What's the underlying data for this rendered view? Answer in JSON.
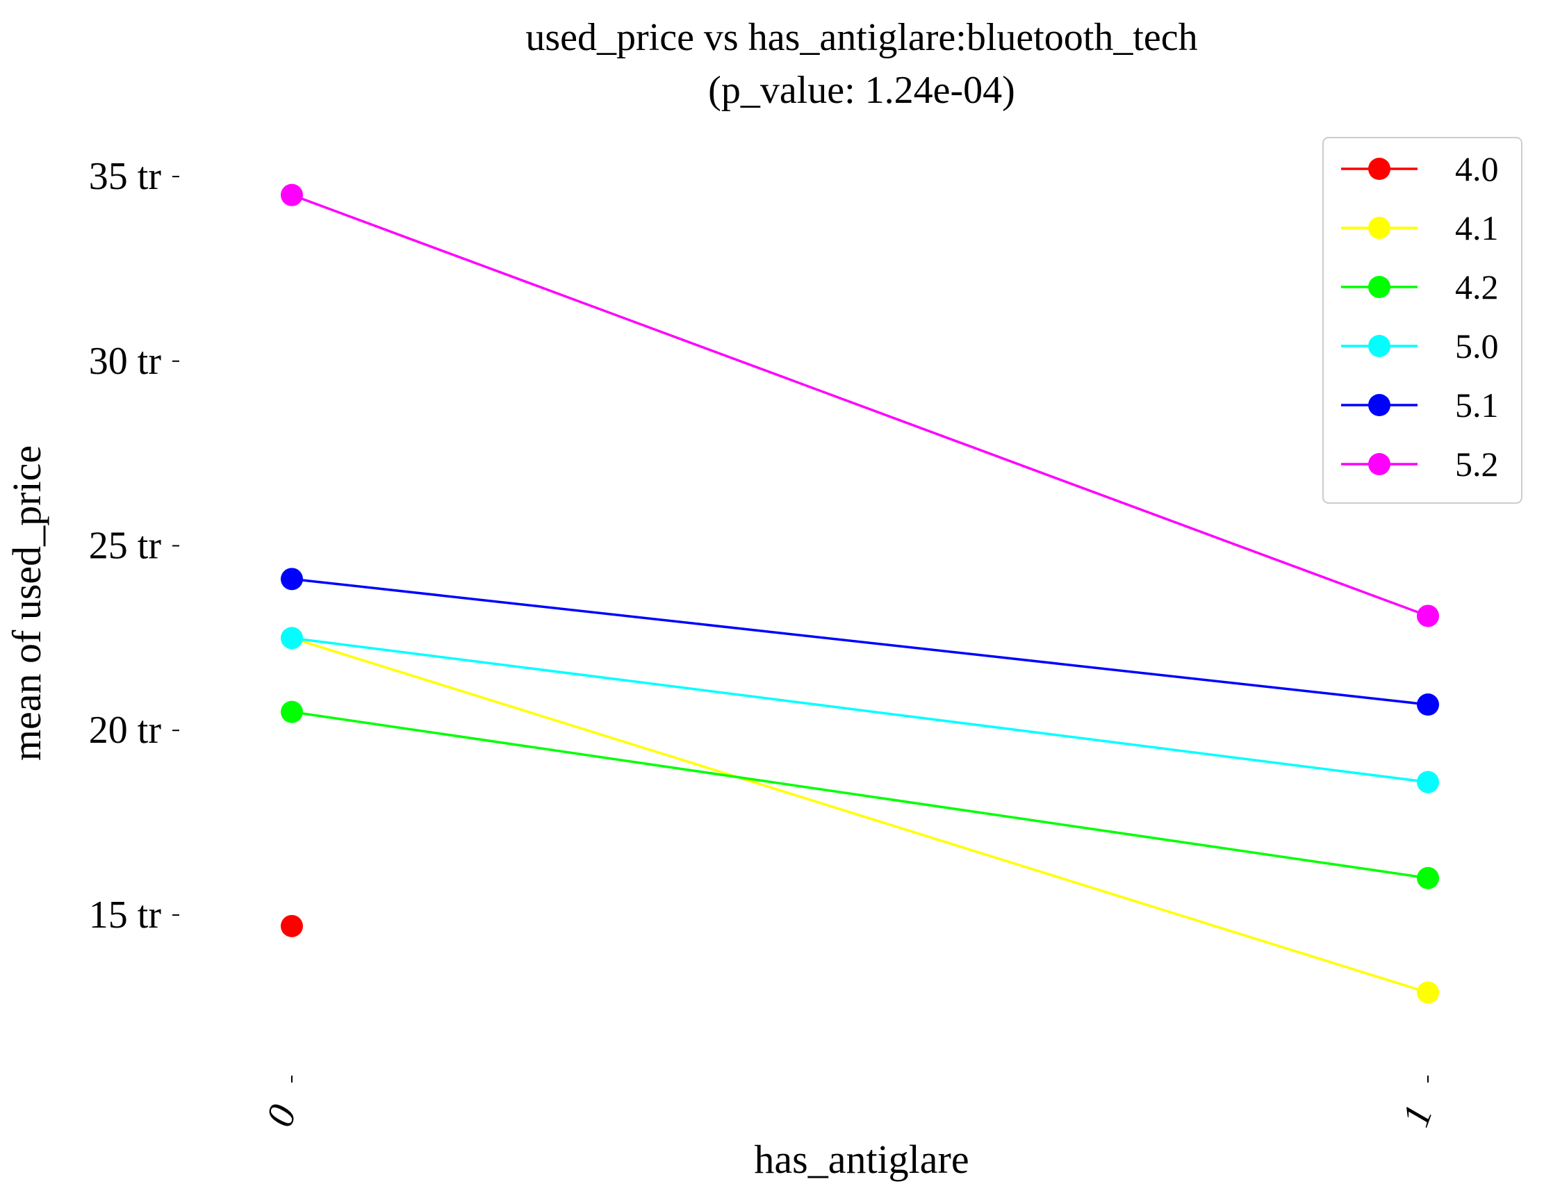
{
  "chart_data": {
    "type": "line",
    "title": "used_price vs has_antiglare:bluetooth_tech",
    "subtitle": "(p_value: 1.24e-04)",
    "xlabel": "has_antiglare",
    "ylabel": "mean of used_price",
    "categories": [
      "0",
      "1"
    ],
    "yticks": [
      {
        "value": 15,
        "label": "15 tr"
      },
      {
        "value": 20,
        "label": "20 tr"
      },
      {
        "value": 25,
        "label": "25 tr"
      },
      {
        "value": 30,
        "label": "30 tr"
      },
      {
        "value": 35,
        "label": "35 tr"
      }
    ],
    "ylim": [
      10,
      37
    ],
    "grid": false,
    "legend_position": "top-right",
    "series": [
      {
        "name": "4.0",
        "color": "#ff0000",
        "values": [
          14.7,
          null
        ]
      },
      {
        "name": "4.1",
        "color": "#ffff00",
        "values": [
          22.5,
          12.9
        ]
      },
      {
        "name": "4.2",
        "color": "#00ff00",
        "values": [
          20.5,
          16.0
        ]
      },
      {
        "name": "5.0",
        "color": "#00ffff",
        "values": [
          22.5,
          18.6
        ]
      },
      {
        "name": "5.1",
        "color": "#0000ff",
        "values": [
          24.1,
          20.7
        ]
      },
      {
        "name": "5.2",
        "color": "#ff00ff",
        "values": [
          34.5,
          23.1
        ]
      }
    ]
  }
}
